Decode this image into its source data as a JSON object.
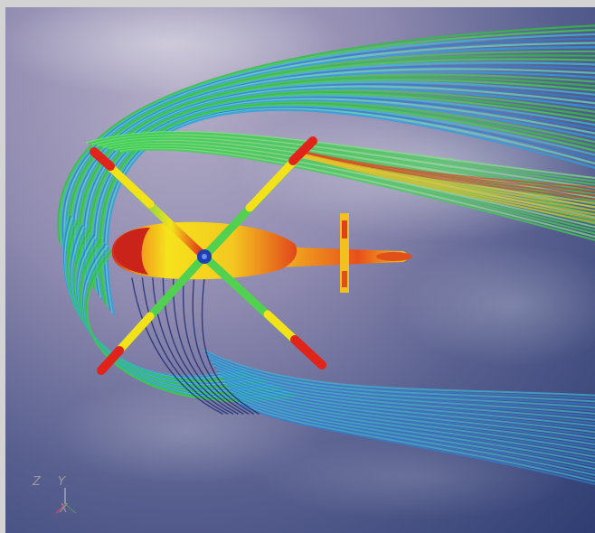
{
  "scene": {
    "description_colors": {
      "sky_top": "#b4aec7",
      "sky_bottom": "#2f3d72",
      "streamline_green": "#2fbf3f",
      "streamline_blue": "#2f7fd0",
      "streamline_cyan": "#3fb6d6",
      "rotor_red": "#e0241a",
      "rotor_yellow": "#f3e21a",
      "hub_blue": "#1e3fb0"
    }
  },
  "axes_triad": {
    "z_label": "Z",
    "y_label": "Y",
    "x_label": "X"
  }
}
